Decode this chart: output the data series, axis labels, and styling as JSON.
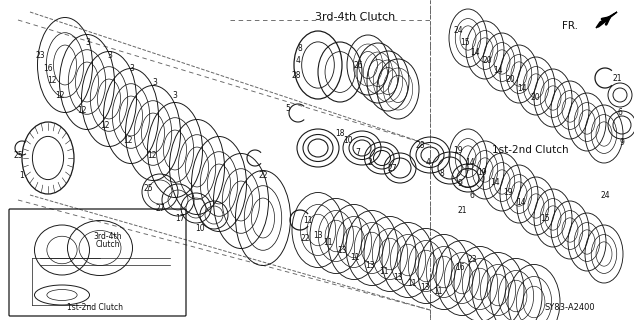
{
  "bg_color": "#ffffff",
  "fig_width": 6.34,
  "fig_height": 3.2,
  "dpi": 100,
  "diagram_ref": "SY83-A2400",
  "direction_label": "FR.",
  "labels_3rd4th_title": "3rd-4th Clutch",
  "labels_1st2nd_title": "1st-2nd Clutch",
  "labels_3rd4th_callout": "3rd-4th\nClutch",
  "labels_1st2nd_callout": "1st-2nd Clutch",
  "line_color": "#1a1a1a",
  "text_color": "#111111",
  "dashed_line_color": "#666666"
}
